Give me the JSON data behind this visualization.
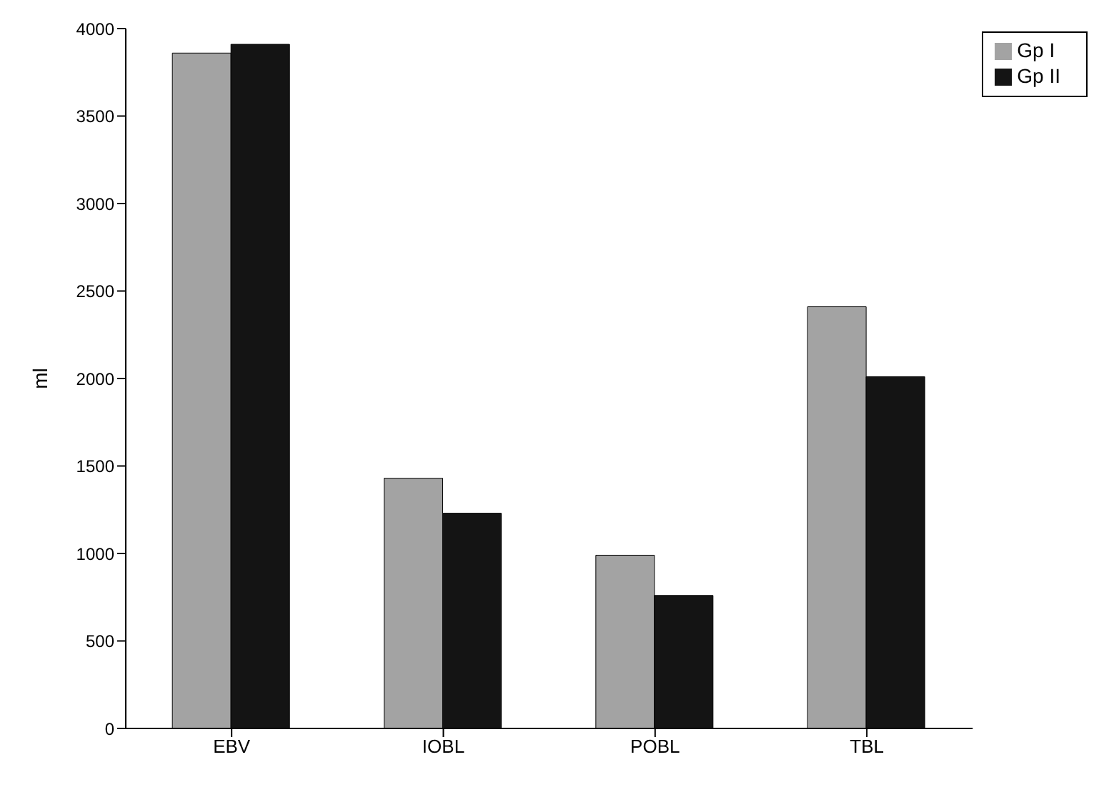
{
  "chart_data": {
    "type": "bar",
    "ylabel": "ml",
    "categories": [
      "EBV",
      "IOBL",
      "POBL",
      "TBL"
    ],
    "series": [
      {
        "name": "Gp I",
        "color": "#a3a3a3",
        "values": [
          3860,
          1430,
          990,
          2410
        ]
      },
      {
        "name": "Gp II",
        "color": "#141414",
        "values": [
          3910,
          1230,
          760,
          2010
        ]
      }
    ],
    "ylim": [
      0,
      4000
    ],
    "yticks": [
      0,
      500,
      1000,
      1500,
      2000,
      2500,
      3000,
      3500,
      4000
    ],
    "grid": false,
    "legend": "top right"
  }
}
